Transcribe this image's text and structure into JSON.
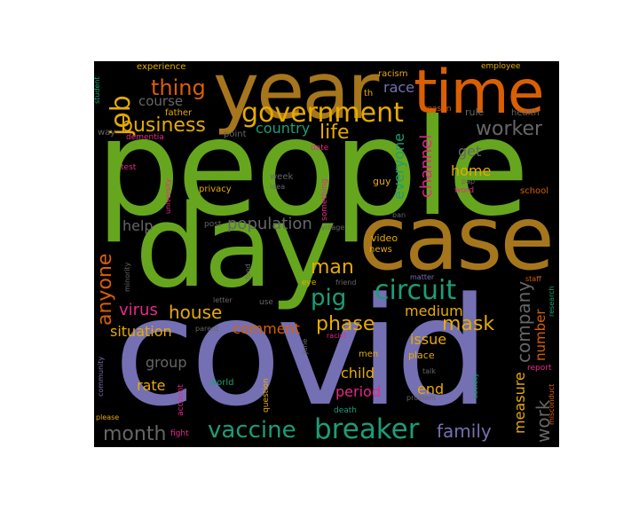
{
  "colors": {
    "background": "#000000",
    "purple": "#7570b3",
    "green": "#66a61e",
    "orange": "#d95f02",
    "teal": "#1b9e77",
    "gold": "#a6761d",
    "yellow": "#e6ab02",
    "pink": "#e7298a",
    "gray": "#666666"
  },
  "words": [
    {
      "id": "covid",
      "text": "covid"
    },
    {
      "id": "people",
      "text": "people"
    },
    {
      "id": "day",
      "text": "day"
    },
    {
      "id": "case",
      "text": "case"
    },
    {
      "id": "year",
      "text": "year"
    },
    {
      "id": "time",
      "text": "time"
    },
    {
      "id": "government",
      "text": "government"
    },
    {
      "id": "circuit",
      "text": "circuit"
    },
    {
      "id": "breaker",
      "text": "breaker"
    },
    {
      "id": "vaccine",
      "text": "vaccine"
    },
    {
      "id": "job",
      "text": "job"
    },
    {
      "id": "thing",
      "text": "thing"
    },
    {
      "id": "business",
      "text": "business"
    },
    {
      "id": "worker",
      "text": "worker"
    },
    {
      "id": "life",
      "text": "life"
    },
    {
      "id": "country",
      "text": "country"
    },
    {
      "id": "course",
      "text": "course"
    },
    {
      "id": "pig",
      "text": "pig"
    },
    {
      "id": "man",
      "text": "man"
    },
    {
      "id": "phase",
      "text": "phase"
    },
    {
      "id": "mask",
      "text": "mask"
    },
    {
      "id": "house",
      "text": "house"
    },
    {
      "id": "virus",
      "text": "virus"
    },
    {
      "id": "population",
      "text": "population"
    },
    {
      "id": "help",
      "text": "help"
    },
    {
      "id": "anyone",
      "text": "anyone"
    },
    {
      "id": "month",
      "text": "month"
    },
    {
      "id": "family",
      "text": "family"
    },
    {
      "id": "company",
      "text": "company"
    },
    {
      "id": "work",
      "text": "work"
    },
    {
      "id": "measure",
      "text": "measure"
    },
    {
      "id": "channel",
      "text": "channel"
    },
    {
      "id": "everyone",
      "text": "everyone"
    },
    {
      "id": "home",
      "text": "home"
    },
    {
      "id": "get",
      "text": "get"
    },
    {
      "id": "race",
      "text": "race"
    },
    {
      "id": "medium",
      "text": "medium"
    },
    {
      "id": "situation",
      "text": "situation"
    },
    {
      "id": "comment",
      "text": "comment"
    },
    {
      "id": "number",
      "text": "number"
    },
    {
      "id": "issue",
      "text": "issue"
    },
    {
      "id": "child",
      "text": "child"
    },
    {
      "id": "end",
      "text": "end"
    },
    {
      "id": "period",
      "text": "period"
    },
    {
      "id": "rate",
      "text": "rate"
    },
    {
      "id": "group",
      "text": "group"
    },
    {
      "id": "experience",
      "text": "experience"
    },
    {
      "id": "racism",
      "text": "racism"
    },
    {
      "id": "employee",
      "text": "employee"
    },
    {
      "id": "student",
      "text": "student"
    },
    {
      "id": "father",
      "text": "father"
    },
    {
      "id": "th",
      "text": "th"
    },
    {
      "id": "reason",
      "text": "reason"
    },
    {
      "id": "rule",
      "text": "rule"
    },
    {
      "id": "health",
      "text": "health"
    },
    {
      "id": "way",
      "text": "way"
    },
    {
      "id": "dementia",
      "text": "dementia"
    },
    {
      "id": "point",
      "text": "point"
    },
    {
      "id": "date",
      "text": "date"
    },
    {
      "id": "test",
      "text": "test"
    },
    {
      "id": "university",
      "text": "university"
    },
    {
      "id": "week",
      "text": "week"
    },
    {
      "id": "idea",
      "text": "idea"
    },
    {
      "id": "guy",
      "text": "guy"
    },
    {
      "id": "something",
      "text": "something"
    },
    {
      "id": "pap",
      "text": "pap"
    },
    {
      "id": "word",
      "text": "word"
    },
    {
      "id": "school",
      "text": "school"
    },
    {
      "id": "privacy",
      "text": "privacy"
    },
    {
      "id": "post",
      "text": "post"
    },
    {
      "id": "ban",
      "text": "ban"
    },
    {
      "id": "village",
      "text": "village"
    },
    {
      "id": "video",
      "text": "video"
    },
    {
      "id": "news",
      "text": "news"
    },
    {
      "id": "minority",
      "text": "minority"
    },
    {
      "id": "food",
      "text": "food"
    },
    {
      "id": "eye",
      "text": "eye"
    },
    {
      "id": "friend",
      "text": "friend"
    },
    {
      "id": "matter",
      "text": "matter"
    },
    {
      "id": "staff",
      "text": "staff"
    },
    {
      "id": "research",
      "text": "research"
    },
    {
      "id": "letter",
      "text": "letter"
    },
    {
      "id": "use",
      "text": "use"
    },
    {
      "id": "parent",
      "text": "parent"
    },
    {
      "id": "racist",
      "text": "racist"
    },
    {
      "id": "june",
      "text": "june"
    },
    {
      "id": "men",
      "text": "men"
    },
    {
      "id": "place",
      "text": "place"
    },
    {
      "id": "talk",
      "text": "talk"
    },
    {
      "id": "society",
      "text": "society"
    },
    {
      "id": "report",
      "text": "report"
    },
    {
      "id": "misconduct",
      "text": "misconduct"
    },
    {
      "id": "community",
      "text": "community"
    },
    {
      "id": "please",
      "text": "please"
    },
    {
      "id": "account",
      "text": "account"
    },
    {
      "id": "world",
      "text": "world"
    },
    {
      "id": "question",
      "text": "question"
    },
    {
      "id": "problem",
      "text": "problem"
    },
    {
      "id": "death",
      "text": "death"
    },
    {
      "id": "fight",
      "text": "fight"
    }
  ]
}
